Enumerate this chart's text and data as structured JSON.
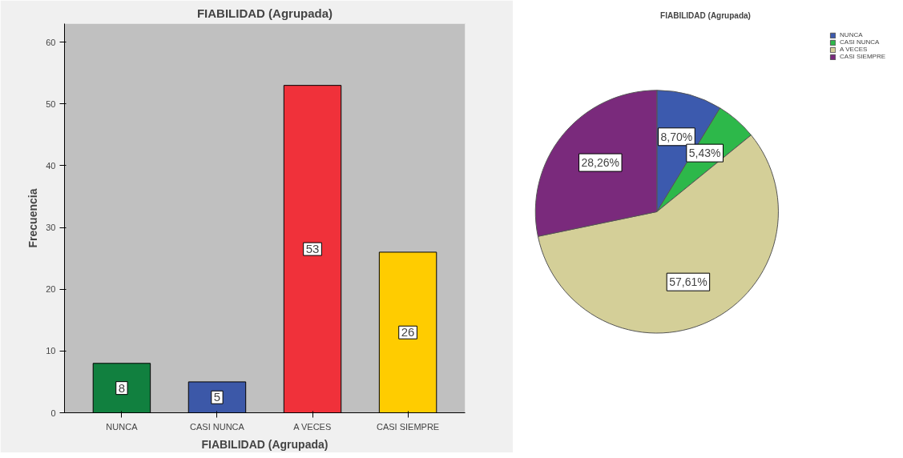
{
  "chart_data": [
    {
      "type": "bar",
      "title": "FIABILIDAD (Agrupada)",
      "xlabel": "FIABILIDAD (Agrupada)",
      "ylabel": "Frecuencia",
      "categories": [
        "NUNCA",
        "CASI NUNCA",
        "A VECES",
        "CASI SIEMPRE"
      ],
      "values": [
        8,
        5,
        53,
        26
      ],
      "colors": [
        "#11803f",
        "#3c58a8",
        "#f0313a",
        "#ffcc00"
      ],
      "ylim": [
        0,
        63
      ],
      "yticks": [
        0,
        10,
        20,
        30,
        40,
        50,
        60
      ],
      "data_labels": true,
      "grid": false,
      "legend": false
    },
    {
      "type": "pie",
      "title": "FIABILIDAD (Agrupada)",
      "categories": [
        "NUNCA",
        "CASI NUNCA",
        "A VECES",
        "CASI SIEMPRE"
      ],
      "values": [
        8.7,
        5.43,
        57.61,
        28.26
      ],
      "value_labels": [
        "8,70%",
        "5,43%",
        "57,61%",
        "28,26%"
      ],
      "colors": [
        "#3c5aae",
        "#2db84a",
        "#d4cf98",
        "#7a2a7c"
      ],
      "legend": "top right"
    }
  ]
}
